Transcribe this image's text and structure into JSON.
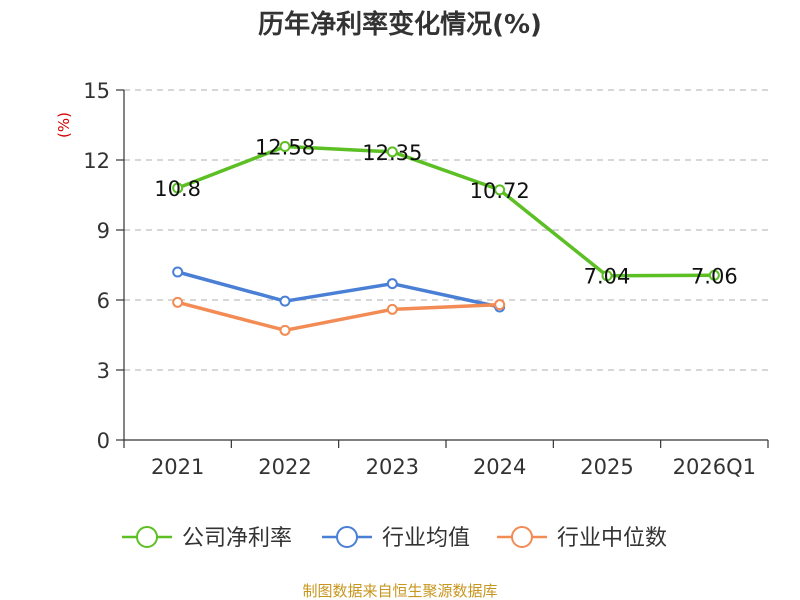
{
  "chart_data": {
    "type": "line",
    "title": "历年净利率变化情况(%)",
    "ylabel": "(%)",
    "xlabel": "",
    "categories": [
      "2021",
      "2022",
      "2023",
      "2024",
      "2025",
      "2026Q1"
    ],
    "ylim": [
      0,
      15
    ],
    "yticks": [
      0,
      3,
      6,
      9,
      12,
      15
    ],
    "grid": true,
    "legend_position": "bottom",
    "series": [
      {
        "name": "公司净利率",
        "color": "#5cbf24",
        "values": [
          10.8,
          12.58,
          12.35,
          10.72,
          7.04,
          7.06
        ],
        "labels": [
          "10.8",
          "12.58",
          "12.35",
          "10.72",
          "7.04",
          "7.06"
        ]
      },
      {
        "name": "行业均值",
        "color": "#4a7fd6",
        "values": [
          7.2,
          5.95,
          6.7,
          5.7,
          null,
          null
        ]
      },
      {
        "name": "行业中位数",
        "color": "#f28b54",
        "values": [
          5.9,
          4.7,
          5.6,
          5.8,
          null,
          null
        ]
      }
    ],
    "source": "制图数据来自恒生聚源数据库"
  }
}
